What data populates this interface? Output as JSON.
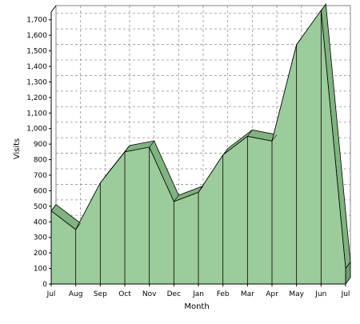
{
  "chart_data": {
    "type": "area",
    "style": "3d",
    "categories": [
      "Jul",
      "Aug",
      "Sep",
      "Oct",
      "Nov",
      "Dec",
      "Jan",
      "Feb",
      "Mar",
      "Apr",
      "May",
      "Jun",
      "Jul"
    ],
    "series": [
      {
        "values": [
          470,
          350,
          650,
          850,
          880,
          530,
          590,
          830,
          950,
          920,
          1540,
          1760,
          100
        ],
        "color": "#9ccc9c",
        "edge_color": "#000000"
      }
    ],
    "xlabel": "Month",
    "ylabel": "Visits",
    "ylim": [
      0,
      1750
    ],
    "ytick_step": 100,
    "ytick_labels": [
      "0",
      "100",
      "200",
      "300",
      "400",
      "500",
      "600",
      "700",
      "800",
      "900",
      "1,000",
      "1,100",
      "1,200",
      "1,300",
      "1,400",
      "1,500",
      "1,600",
      "1,700"
    ],
    "grid": true,
    "grid_style": "dashed",
    "legend": false
  }
}
